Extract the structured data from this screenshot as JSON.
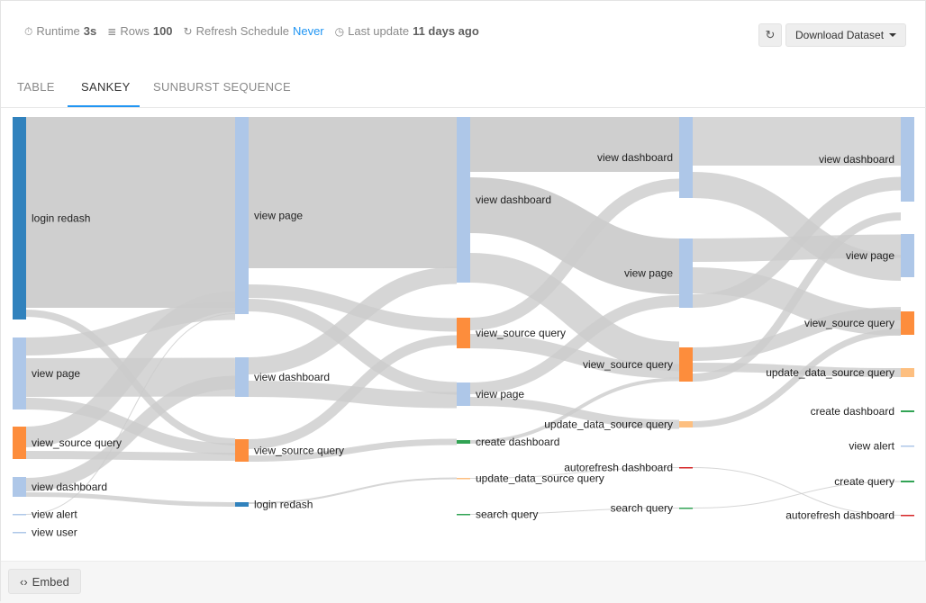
{
  "meta": {
    "runtime_label": "Runtime",
    "runtime_value": "3s",
    "rows_label": "Rows",
    "rows_value": "100",
    "refresh_label": "Refresh Schedule",
    "refresh_value": "Never",
    "update_label": "Last update",
    "update_value": "11 days ago"
  },
  "toolbar": {
    "refresh_icon": "refresh-icon",
    "download_label": "Download Dataset"
  },
  "tabs": [
    {
      "label": "TABLE"
    },
    {
      "label": "SANKEY"
    },
    {
      "label": "SUNBURST SEQUENCE"
    }
  ],
  "active_tab": "SANKEY",
  "footer": {
    "embed_label": "Embed",
    "embed_icon": "code-icon"
  },
  "colors": {
    "link": "#cccccc",
    "blue_dark": "#3182bd",
    "blue_light": "#aec7e8",
    "orange": "#fd8d3c",
    "orange_light": "#fdbf80",
    "green": "#31a354",
    "red": "#d62728",
    "accent": "#2196f3"
  },
  "chart_data": {
    "type": "sankey",
    "stages": [
      [
        "login redash",
        "view page",
        "view_source query",
        "view dashboard",
        "view alert",
        "view user"
      ],
      [
        "view page",
        "view dashboard",
        "view_source query",
        "login redash"
      ],
      [
        "view dashboard",
        "view_source query",
        "view page",
        "create dashboard",
        "update_data_source query",
        "search query"
      ],
      [
        "view dashboard",
        "view page",
        "view_source query",
        "update_data_source query",
        "autorefresh dashboard",
        "search query"
      ],
      [
        "view dashboard",
        "view page",
        "view_source query",
        "update_data_source query",
        "create dashboard",
        "view alert",
        "create query",
        "autorefresh dashboard"
      ]
    ]
  }
}
